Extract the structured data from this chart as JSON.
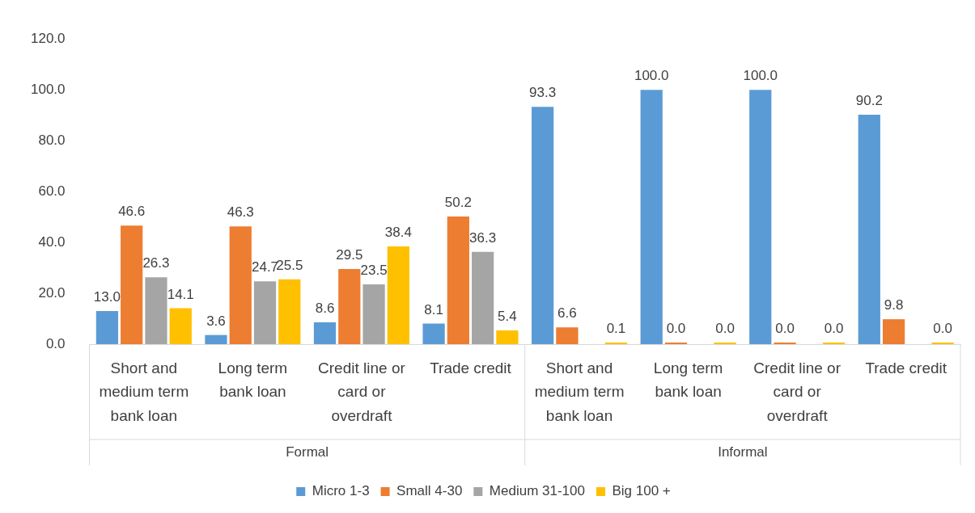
{
  "chart_data": {
    "type": "bar",
    "categories": [
      "Short and medium term bank loan",
      "Long term bank loan",
      "Credit line or card or overdraft",
      "Trade credit",
      "Short and medium term bank loan",
      "Long term bank loan",
      "Credit line or card or overdraft",
      "Trade credit"
    ],
    "series": [
      {
        "name": "Micro 1-3",
        "color": "#5b9bd5",
        "values": [
          13.0,
          3.6,
          8.6,
          8.1,
          93.3,
          100.0,
          100.0,
          90.2
        ],
        "value_labels": [
          "13.0",
          "3.6",
          "8.6",
          "8.1",
          "93.3",
          "100.0",
          "100.0",
          "90.2"
        ]
      },
      {
        "name": "Small 4-30",
        "color": "#ed7d31",
        "values": [
          46.6,
          46.3,
          29.5,
          50.2,
          6.6,
          0.0,
          0.0,
          9.8
        ],
        "value_labels": [
          "46.6",
          "46.3",
          "29.5",
          "50.2",
          "6.6",
          "0.0",
          "0.0",
          "9.8"
        ]
      },
      {
        "name": "Medium 31-100",
        "color": "#a5a5a5",
        "values": [
          26.3,
          24.7,
          23.5,
          36.3,
          null,
          null,
          null,
          null
        ],
        "value_labels": [
          "26.3",
          "24.7",
          "23.5",
          "36.3",
          null,
          null,
          null,
          null
        ]
      },
      {
        "name": "Big 100 +",
        "color": "#ffc000",
        "values": [
          14.1,
          25.5,
          38.4,
          5.4,
          0.1,
          0.0,
          0.0,
          0.0
        ],
        "value_labels": [
          "14.1",
          "25.5",
          "38.4",
          "5.4",
          "0.1",
          "0.0",
          "0.0",
          "0.0"
        ]
      }
    ],
    "annotations": [
      "Formal",
      "Informal"
    ],
    "ylim": [
      0,
      120
    ],
    "yticks": [
      {
        "value": 0,
        "label": "0.0"
      },
      {
        "value": 20,
        "label": "20.0"
      },
      {
        "value": 40,
        "label": "40.0"
      },
      {
        "value": 60,
        "label": "60.0"
      },
      {
        "value": 80,
        "label": "80.0"
      },
      {
        "value": 100,
        "label": "100.0"
      },
      {
        "value": 120,
        "label": "120.0"
      }
    ],
    "grid": false,
    "legend": "bottom"
  }
}
